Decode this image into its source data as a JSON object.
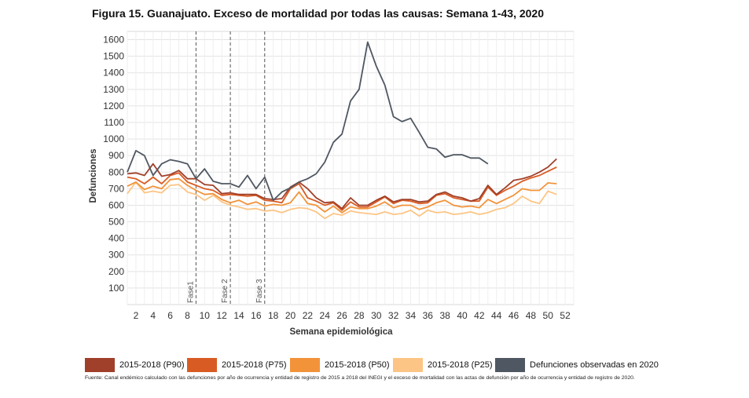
{
  "title": "Figura 15. Guanajuato. Exceso de mortalidad por todas las causas: Semana 1-43, 2020",
  "footnote": "Fuente: Canal endémico calculado con las defunciones por año de ocurrencia y entidad de registro de 2015 a 2018 del INEGI y el exceso de mortalidad con las actas de defunción por año de ocurrencia y entidad de registro de 2020.",
  "chart_data": {
    "type": "line",
    "xlabel": "Semana epidemiológica",
    "ylabel": "Defunciones",
    "xlim": [
      1,
      53
    ],
    "ylim": [
      0,
      1650
    ],
    "xticks": [
      "2",
      "4",
      "6",
      "8",
      "10",
      "12",
      "14",
      "16",
      "18",
      "20",
      "22",
      "24",
      "26",
      "28",
      "30",
      "32",
      "34",
      "36",
      "38",
      "40",
      "42",
      "44",
      "46",
      "48",
      "50",
      "52"
    ],
    "yticks": [
      "100",
      "200",
      "300",
      "400",
      "500",
      "600",
      "700",
      "800",
      "900",
      "1000",
      "1100",
      "1200",
      "1300",
      "1400",
      "1500",
      "1600"
    ],
    "grid": true,
    "legend_position": "bottom",
    "phases": [
      {
        "label": "Fase1",
        "week": 9
      },
      {
        "label": "Fase 2",
        "week": 13
      },
      {
        "label": "Fase 3",
        "week": 17
      }
    ],
    "series": [
      {
        "name": "2015-2018 (P90)",
        "color": "#a0402a",
        "values": [
          790,
          795,
          780,
          850,
          775,
          785,
          810,
          760,
          760,
          725,
          720,
          670,
          675,
          665,
          665,
          665,
          640,
          635,
          640,
          710,
          740,
          700,
          645,
          615,
          620,
          580,
          645,
          600,
          600,
          630,
          655,
          620,
          635,
          635,
          620,
          625,
          665,
          680,
          655,
          645,
          625,
          640,
          720,
          665,
          705,
          750,
          760,
          775,
          800,
          830,
          880
        ]
      },
      {
        "name": "2015-2018 (P75)",
        "color": "#d95b24",
        "values": [
          770,
          760,
          730,
          770,
          730,
          780,
          795,
          740,
          720,
          700,
          690,
          660,
          665,
          660,
          655,
          660,
          630,
          625,
          615,
          700,
          730,
          645,
          625,
          600,
          615,
          570,
          620,
          590,
          590,
          620,
          650,
          610,
          630,
          625,
          610,
          615,
          660,
          670,
          645,
          635,
          625,
          625,
          710,
          660,
          690,
          715,
          745,
          765,
          780,
          805,
          830
        ]
      },
      {
        "name": "2015-2018 (P50)",
        "color": "#f2933a",
        "values": [
          715,
          740,
          695,
          715,
          700,
          755,
          760,
          720,
          690,
          665,
          670,
          635,
          615,
          630,
          605,
          620,
          595,
          605,
          600,
          615,
          680,
          610,
          600,
          560,
          595,
          555,
          590,
          580,
          580,
          595,
          620,
          585,
          600,
          600,
          575,
          590,
          615,
          630,
          600,
          590,
          595,
          585,
          635,
          610,
          635,
          660,
          700,
          690,
          690,
          735,
          730
        ]
      },
      {
        "name": "2015-2018 (P25)",
        "color": "#fcc585",
        "values": [
          670,
          740,
          675,
          685,
          675,
          720,
          725,
          680,
          665,
          630,
          660,
          620,
          600,
          590,
          575,
          580,
          565,
          570,
          555,
          575,
          585,
          580,
          560,
          520,
          550,
          540,
          565,
          555,
          550,
          545,
          560,
          545,
          550,
          570,
          535,
          570,
          555,
          560,
          545,
          550,
          560,
          545,
          555,
          575,
          585,
          610,
          655,
          625,
          610,
          685,
          665
        ]
      },
      {
        "name": "Defunciones observadas en 2020",
        "color": "#4f5762",
        "values": [
          800,
          930,
          900,
          780,
          850,
          875,
          865,
          850,
          760,
          820,
          745,
          730,
          730,
          710,
          780,
          700,
          770,
          630,
          680,
          705,
          740,
          760,
          790,
          860,
          980,
          1030,
          1230,
          1300,
          1585,
          1440,
          1325,
          1135,
          1105,
          1125,
          1040,
          950,
          940,
          890,
          905,
          905,
          885,
          885,
          850
        ]
      }
    ]
  }
}
